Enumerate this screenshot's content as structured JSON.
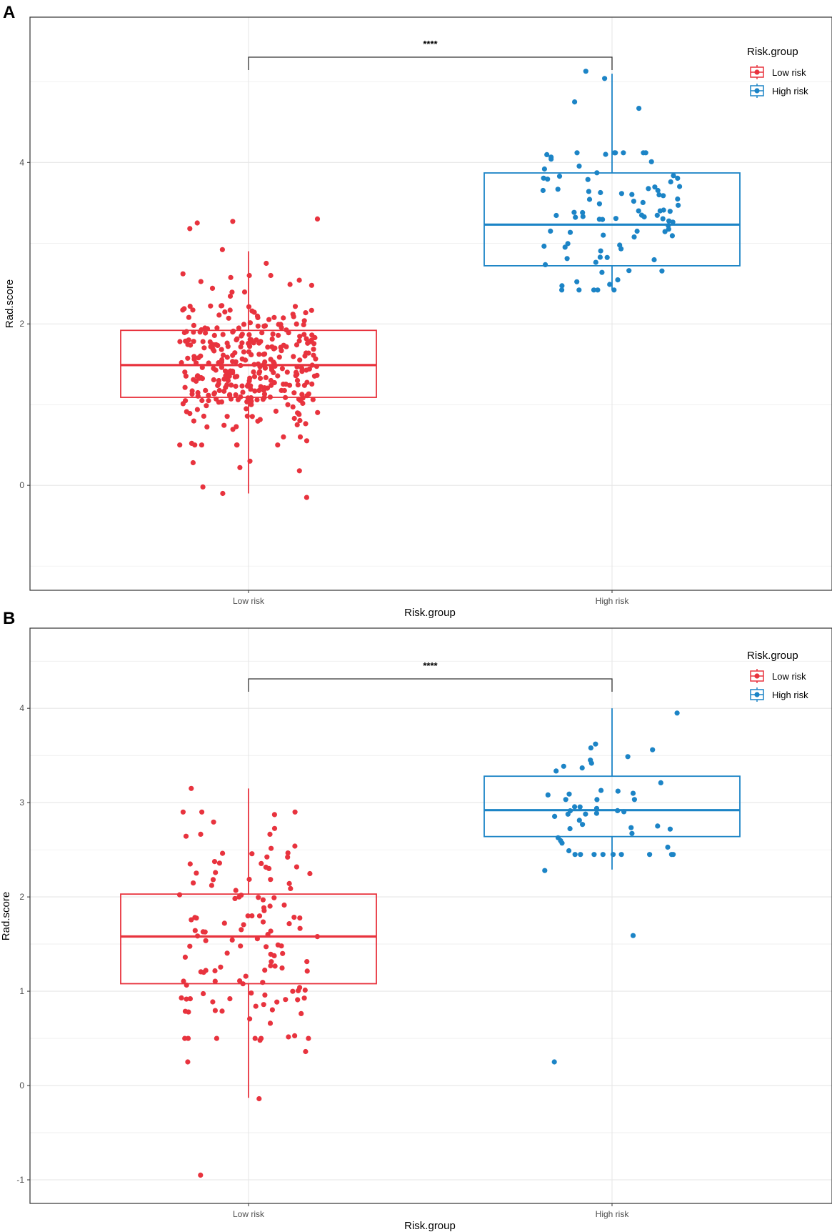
{
  "colors": {
    "low": "#E8333E",
    "high": "#1C84C6",
    "grid": "#E6E6E6",
    "border": "#333333"
  },
  "chart_data": [
    {
      "panel_label": "A",
      "type": "box",
      "xlabel": "Risk.group",
      "ylabel": "Rad.score",
      "categories": [
        "Low risk",
        "High risk"
      ],
      "ylim": [
        -1.3,
        5.8
      ],
      "yticks": [
        0,
        2,
        4
      ],
      "yticklabels": [
        "0",
        "2",
        "4"
      ],
      "significance": "****",
      "legend": {
        "title": "Risk.group",
        "items": [
          "Low risk",
          "High risk"
        ],
        "position": "top-right"
      },
      "boxes": [
        {
          "name": "Low risk",
          "q1": 1.09,
          "median": 1.49,
          "q3": 1.92,
          "whisker_low": -0.1,
          "whisker_high": 2.9
        },
        {
          "name": "High risk",
          "q1": 2.72,
          "median": 3.23,
          "q3": 3.87,
          "whisker_low": 2.42,
          "whisker_high": 5.1
        }
      ],
      "points": [
        {
          "group": "Low risk",
          "n": 330,
          "seed": 11,
          "center": 1.5,
          "spread": 0.45,
          "min": 0.5,
          "max": 2.6,
          "jitter": 0.19,
          "extra": [
            3.3,
            3.25,
            3.27,
            3.18,
            2.92,
            2.75,
            2.62,
            0.6,
            0.52,
            0.3,
            0.28,
            0.22,
            0.18,
            -0.02,
            -0.1,
            -0.15
          ]
        },
        {
          "group": "High risk",
          "n": 90,
          "seed": 7,
          "center": 3.3,
          "spread": 0.55,
          "min": 2.42,
          "max": 4.12,
          "jitter": 0.19,
          "extra": [
            5.13,
            5.04,
            4.75,
            4.67
          ]
        }
      ]
    },
    {
      "panel_label": "B",
      "type": "box",
      "xlabel": "Risk.group",
      "ylabel": "Rad.score",
      "categories": [
        "Low risk",
        "High risk"
      ],
      "ylim": [
        -1.25,
        4.85
      ],
      "yticks": [
        -1,
        0,
        1,
        2,
        3,
        4
      ],
      "yticklabels": [
        "-1",
        "0",
        "1",
        "2",
        "3",
        "4"
      ],
      "significance": "****",
      "legend": {
        "title": "Risk.group",
        "items": [
          "Low risk",
          "High risk"
        ],
        "position": "top-right"
      },
      "boxes": [
        {
          "name": "Low risk",
          "q1": 1.08,
          "median": 1.58,
          "q3": 2.03,
          "whisker_low": -0.13,
          "whisker_high": 3.15
        },
        {
          "name": "High risk",
          "q1": 2.64,
          "median": 2.92,
          "q3": 3.28,
          "whisker_low": 2.29,
          "whisker_high": 4.0
        }
      ],
      "points": [
        {
          "group": "Low risk",
          "n": 130,
          "seed": 23,
          "center": 1.55,
          "spread": 0.6,
          "min": 0.5,
          "max": 2.9,
          "jitter": 0.19,
          "extra": [
            3.15,
            0.25,
            0.36,
            0.48,
            -0.14,
            -0.95,
            0.66,
            0.78
          ]
        },
        {
          "group": "High risk",
          "n": 48,
          "seed": 5,
          "center": 2.95,
          "spread": 0.38,
          "min": 2.45,
          "max": 4.0,
          "jitter": 0.19,
          "extra": [
            1.59,
            0.25,
            2.28,
            3.56,
            3.95
          ]
        }
      ]
    }
  ]
}
